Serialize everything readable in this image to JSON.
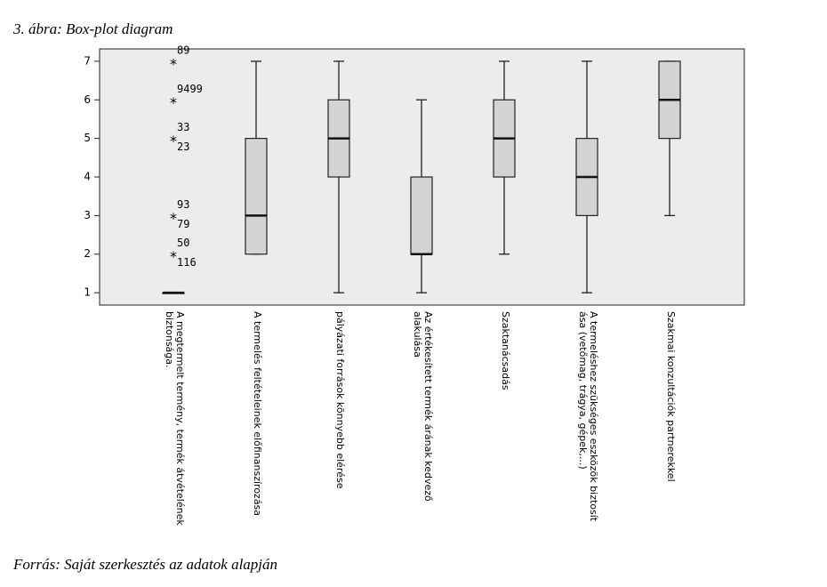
{
  "chart_data": {
    "type": "boxplot",
    "title": "3. ábra: Box-plot diagram",
    "source": "Forrás: Saját szerkesztés az adatok alapján",
    "categories": [
      [
        "A megtermelt termény, termék átvételének",
        "biztonsága."
      ],
      [
        "A termelés feltételeinek előfinanszírozása"
      ],
      [
        "pályázati források könnyebb elérése"
      ],
      [
        "Az értékesített termék árának kedvező",
        "alakulása"
      ],
      [
        "Szaktanácsadás"
      ],
      [
        "A termeléshez szükséges eszközök biztosít",
        "ása (vetőmag, trágya, gépek,...)"
      ],
      [
        "Szakmai konzultációk partnerekkel"
      ]
    ],
    "boxes": [
      {
        "min": 1,
        "q1": 1,
        "median": 1,
        "q3": 1,
        "max": 1,
        "outliers": [
          {
            "value": 7,
            "labels": [
              "89"
            ]
          },
          {
            "value": 6,
            "labels": [
              "9499"
            ]
          },
          {
            "value": 5,
            "labels": [
              "33",
              "23"
            ]
          },
          {
            "value": 3,
            "labels": [
              "93",
              "79"
            ]
          },
          {
            "value": 2,
            "labels": [
              "50",
              "116"
            ]
          }
        ]
      },
      {
        "min": 2,
        "q1": 2,
        "median": 3,
        "q3": 5,
        "max": 7
      },
      {
        "min": 1,
        "q1": 4,
        "median": 5,
        "q3": 6,
        "max": 7
      },
      {
        "min": 1,
        "q1": 2,
        "median": 2,
        "q3": 4,
        "max": 6
      },
      {
        "min": 2,
        "q1": 4,
        "median": 5,
        "q3": 6,
        "max": 7
      },
      {
        "min": 1,
        "q1": 3,
        "median": 4,
        "q3": 5,
        "max": 7
      },
      {
        "min": 3,
        "q1": 5,
        "median": 6,
        "q3": 7,
        "max": 7
      }
    ],
    "color": "#d3d3d3",
    "ylim": [
      0.68,
      7.32
    ],
    "yticks": [
      1,
      2,
      3,
      4,
      5,
      6,
      7
    ]
  }
}
